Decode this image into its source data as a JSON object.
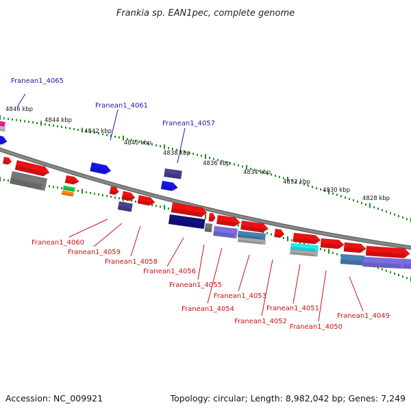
{
  "header": {
    "title": "Frankia sp. EAN1pec, complete genome"
  },
  "footer": {
    "accession": "Accession: NC_009921",
    "summary": "Topology: circular; Length: 8,982,042 bp; Genes: 7,249"
  },
  "colors": {
    "backbone": "#888888",
    "tick": "#1f8a1f",
    "label_upper": "#1a1aaa",
    "label_lower": "#cc1111",
    "gene_red": "#ee1111",
    "gene_blue": "#1414ee",
    "gene_navy": "#101080",
    "gene_slate": "#4b3f8f",
    "gene_violet": "#7a6ee0",
    "gene_grey": "#777777",
    "gene_cyan": "#22eeee",
    "gene_steel": "#4682b4"
  },
  "scale": {
    "ticks": [
      "4846 kbp",
      "4844 kbp",
      "4842 kbp",
      "4840 kbp",
      "4838 kbp",
      "4836 kbp",
      "4834 kbp",
      "4832 kbp",
      "4830 kbp",
      "4828 kbp"
    ]
  },
  "genes_upper": [
    "Franean1_4065",
    "Franean1_4061",
    "Franean1_4057"
  ],
  "genes_lower": [
    "Franean1_4060",
    "Franean1_4059",
    "Franean1_4058",
    "Franean1_4056",
    "Franean1_4055",
    "Franean1_4054",
    "Franean1_4053",
    "Franean1_4052",
    "Franean1_4051",
    "Franean1_4050",
    "Franean1_4049"
  ]
}
